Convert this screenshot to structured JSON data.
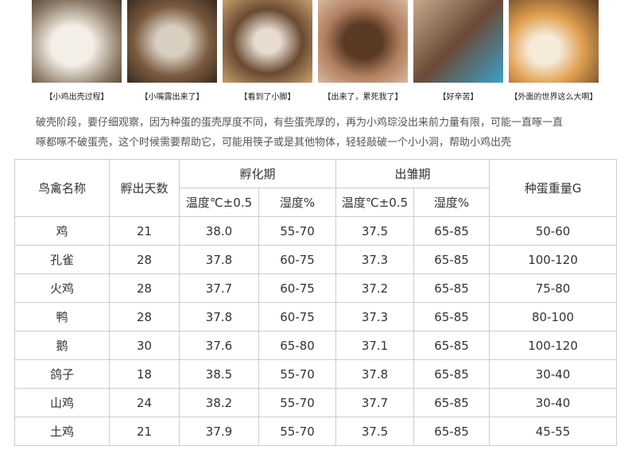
{
  "photos": [
    {
      "caption": "【小鸡出壳过程】"
    },
    {
      "caption": "【小嘴露出来了】"
    },
    {
      "caption": "【看到了小脚】"
    },
    {
      "caption": "【出来了，累死我了】"
    },
    {
      "caption": "【好辛苦】"
    },
    {
      "caption": "【外面的世界这么大啊】"
    }
  ],
  "paragraph": [
    "破壳阶段，要仔细观察，因为种蛋的蛋壳厚度不同，有些蛋壳厚的，再为小鸡琮没出来前力量有限，可能一直啄一直",
    "啄都啄不破蛋壳，这个时候需要帮助它，可能用筷子或是其他物体，轻轻敲破一个小小洞，帮助小鸡出壳"
  ],
  "table": {
    "header": {
      "name": "鸟禽名称",
      "days": "孵出天数",
      "incubation": "孵化期",
      "hatching": "出雏期",
      "weight": "种蛋重量G",
      "sub": [
        "温度℃±0.5",
        "湿度%",
        "温度℃±0.5",
        "湿度%"
      ]
    },
    "rows": [
      [
        "鸡",
        "21",
        "38.0",
        "55-70",
        "37.5",
        "65-85",
        "50-60"
      ],
      [
        "孔雀",
        "28",
        "37.8",
        "60-75",
        "37.3",
        "65-85",
        "100-120"
      ],
      [
        "火鸡",
        "28",
        "37.7",
        "60-75",
        "37.2",
        "65-85",
        "75-80"
      ],
      [
        "鸭",
        "28",
        "37.8",
        "60-75",
        "37.3",
        "65-85",
        "80-100"
      ],
      [
        "鹅",
        "30",
        "37.6",
        "65-80",
        "37.1",
        "65-85",
        "100-120"
      ],
      [
        "鸽子",
        "18",
        "38.5",
        "55-70",
        "37.8",
        "65-85",
        "30-40"
      ],
      [
        "山鸡",
        "24",
        "38.2",
        "55-70",
        "37.7",
        "65-85",
        "30-40"
      ],
      [
        "土鸡",
        "21",
        "37.9",
        "55-70",
        "37.5",
        "65-85",
        "45-55"
      ]
    ]
  }
}
